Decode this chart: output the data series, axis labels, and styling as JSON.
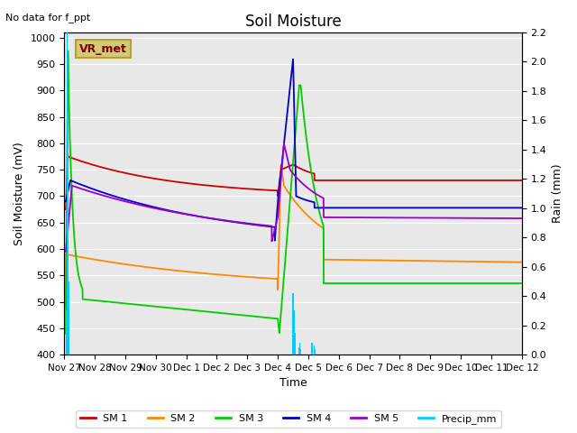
{
  "title": "Soil Moisture",
  "subtitle": "No data for f_ppt",
  "xlabel": "Time",
  "ylabel_left": "Soil Moisture (mV)",
  "ylabel_right": "Rain (mm)",
  "ylim_left": [
    400,
    1010
  ],
  "ylim_right": [
    0.0,
    2.2
  ],
  "yticks_left": [
    400,
    450,
    500,
    550,
    600,
    650,
    700,
    750,
    800,
    850,
    900,
    950,
    1000
  ],
  "yticks_right": [
    0.0,
    0.2,
    0.4,
    0.6,
    0.8,
    1.0,
    1.2,
    1.4,
    1.6,
    1.8,
    2.0,
    2.2
  ],
  "bg_color": "#e8e8e8",
  "fig_color": "#ffffff",
  "legend_box_text": "VR_met",
  "colors": {
    "SM1": "#cc0000",
    "SM2": "#ff8800",
    "SM3": "#00cc00",
    "SM4": "#0000cc",
    "SM5": "#9900cc",
    "Precip": "#00ccff"
  },
  "tick_labels": [
    "Nov 27",
    "Nov 28",
    "Nov 29",
    "Nov 30",
    "Dec 1",
    "Dec 2",
    "Dec 3",
    "Dec 4",
    "Dec 5",
    "Dec 6",
    "Dec 7",
    "Dec 8",
    "Dec 9",
    "Dec 10",
    "Dec 11",
    "Dec 12"
  ]
}
